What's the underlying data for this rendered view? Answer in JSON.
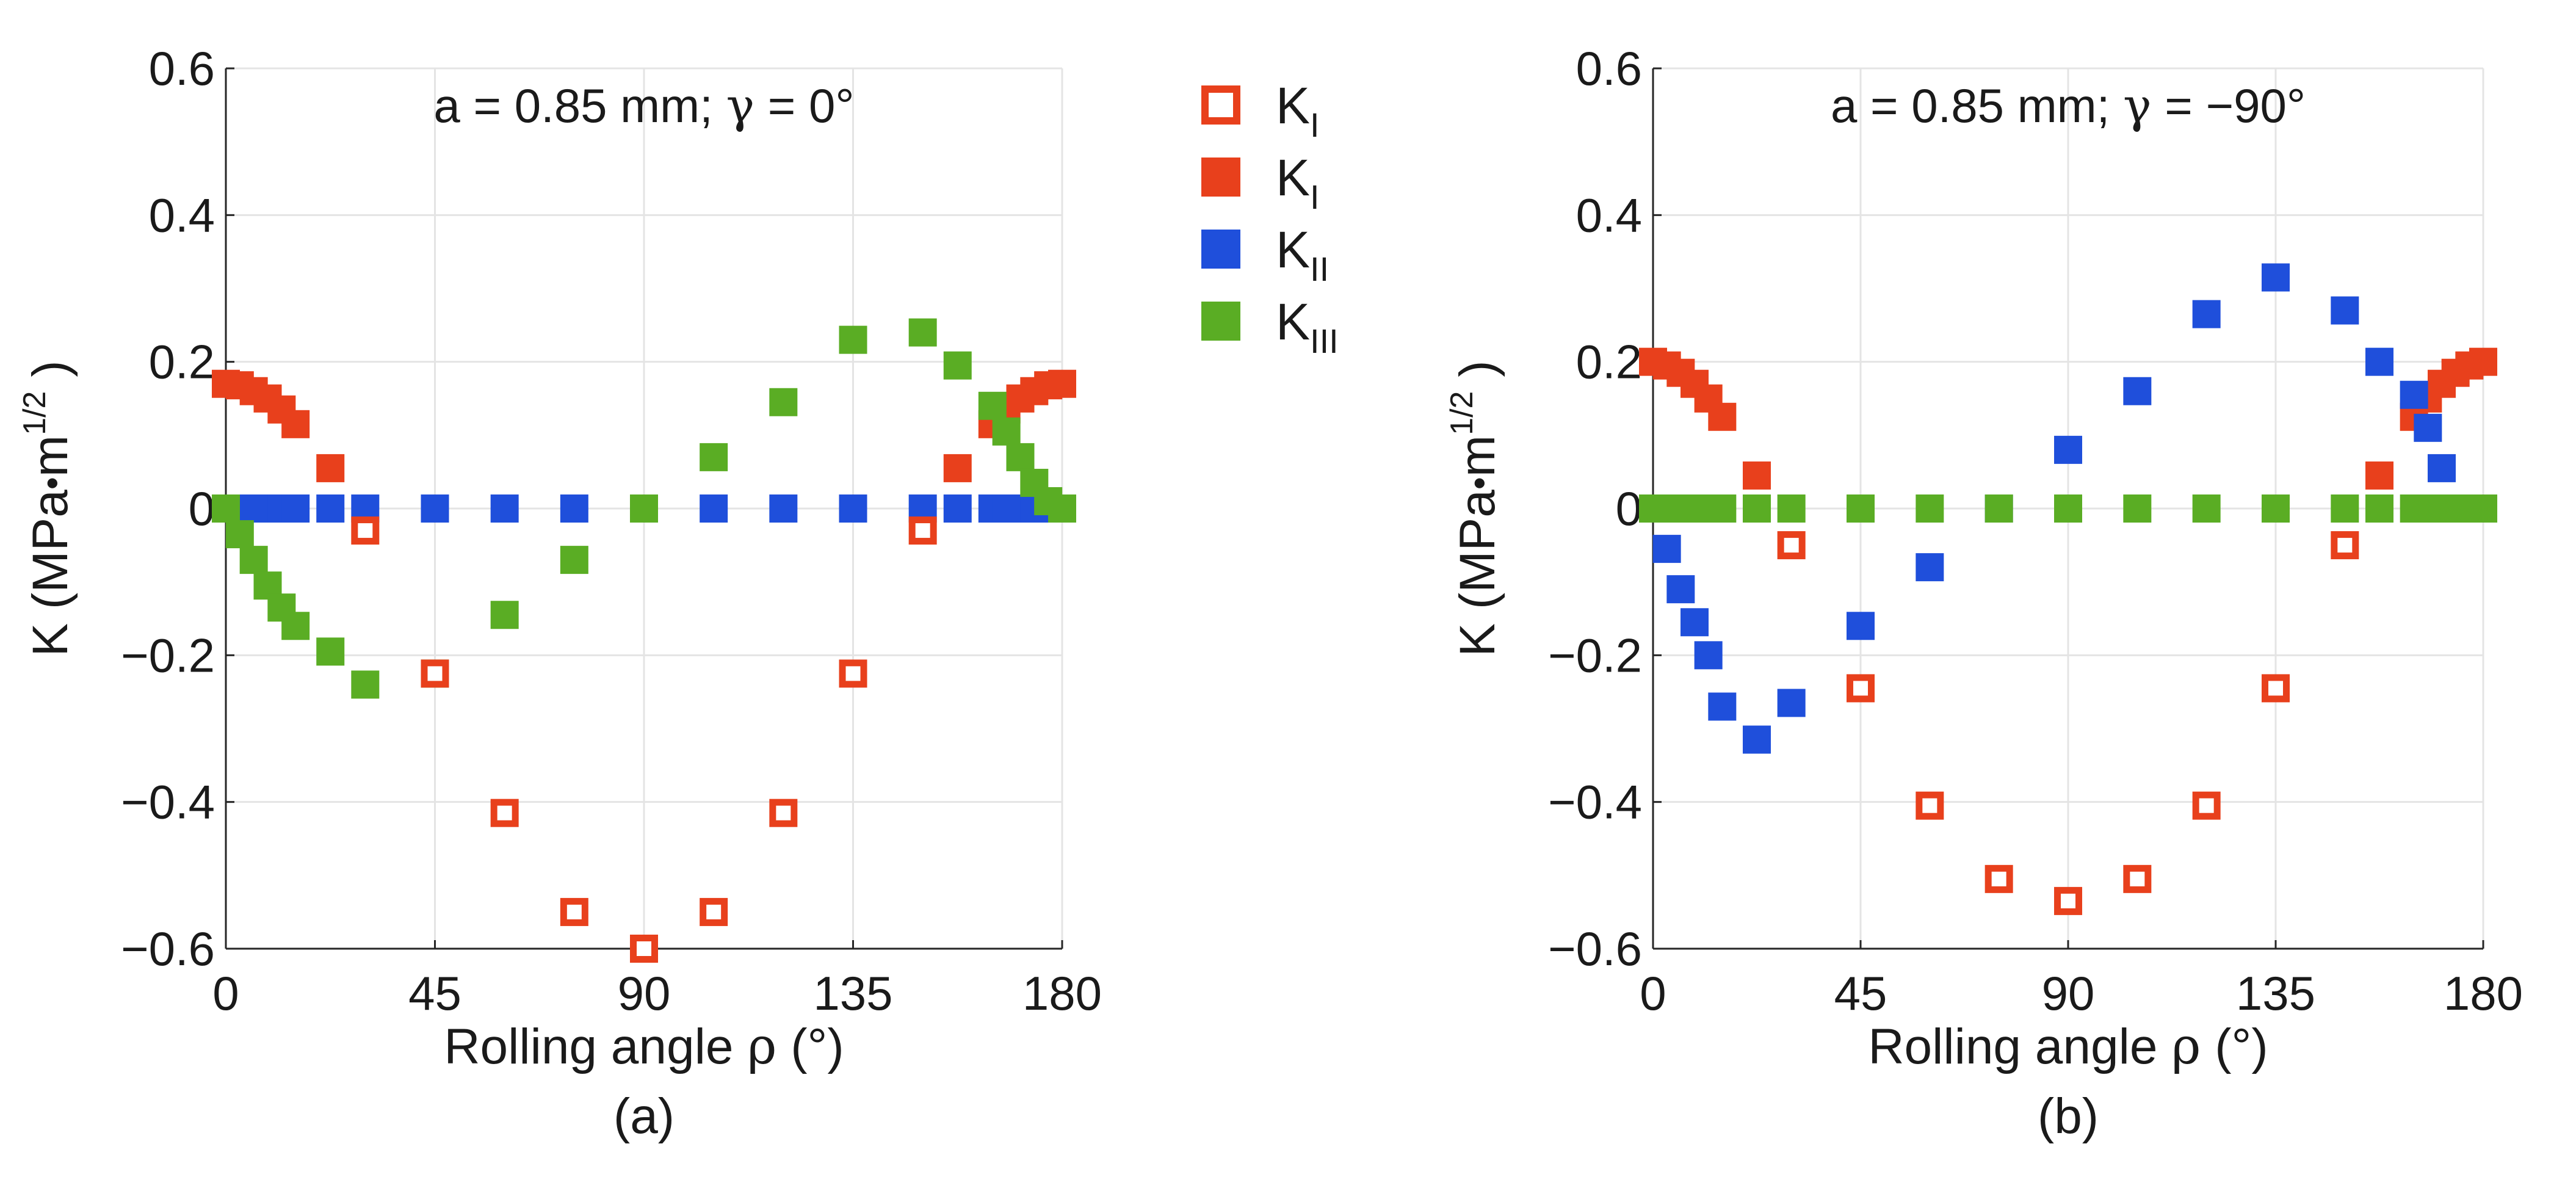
{
  "chart_data": [
    {
      "type": "scatter",
      "panel_label": "(a)",
      "annotation": {
        "prefix": "a = 0.85 mm; ",
        "gamma": "γ",
        "suffix": "  = 0°"
      },
      "xlabel": {
        "text": "Rolling angle ",
        "rho": "ρ",
        "unit": "  (°)"
      },
      "ylabel": {
        "main": "K (MPa",
        "dot": "•",
        "m": "m",
        "exp": "1/2",
        "close": " )"
      },
      "xlim": [
        0,
        180
      ],
      "ylim": [
        -0.6,
        0.6
      ],
      "xticks": [
        0,
        45,
        90,
        135,
        180
      ],
      "yticks": [
        -0.6,
        -0.4,
        -0.2,
        0,
        0.2,
        0.4,
        0.6
      ],
      "ytick_labels": [
        "−0.6",
        "−0.4",
        "−0.2",
        "0",
        "0.2",
        "0.4",
        "0.6"
      ],
      "grid": true,
      "series": [
        {
          "key": "KI_open",
          "color": "#e8401c",
          "filled": false,
          "x": [
            30,
            45,
            60,
            75,
            90,
            105,
            120,
            135,
            150
          ],
          "y": [
            -0.03,
            -0.225,
            -0.415,
            -0.55,
            -0.6,
            -0.55,
            -0.415,
            -0.225,
            -0.03
          ]
        },
        {
          "key": "KI_filled",
          "color": "#e8401c",
          "filled": true,
          "x": [
            0,
            3,
            6,
            9,
            12,
            15,
            22.5,
            157.5,
            165,
            168,
            171,
            174,
            177,
            180
          ],
          "y": [
            0.17,
            0.168,
            0.16,
            0.15,
            0.135,
            0.115,
            0.055,
            0.055,
            0.115,
            0.135,
            0.15,
            0.16,
            0.168,
            0.17
          ]
        },
        {
          "key": "KII",
          "color": "#1f4fdb",
          "filled": true,
          "x": [
            0,
            3,
            6,
            9,
            12,
            15,
            22.5,
            30,
            45,
            60,
            75,
            90,
            105,
            120,
            135,
            150,
            157.5,
            165,
            168,
            171,
            174,
            177,
            180
          ],
          "y": [
            0,
            0,
            0,
            0,
            0,
            0,
            0,
            0,
            0,
            0,
            0,
            0,
            0,
            0,
            0,
            0,
            0,
            0,
            0,
            0,
            0,
            0,
            0
          ]
        },
        {
          "key": "KIII",
          "color": "#5aad24",
          "filled": true,
          "x": [
            0,
            3,
            6,
            9,
            12,
            15,
            22.5,
            30,
            45,
            60,
            75,
            90,
            105,
            120,
            135,
            150,
            157.5,
            165,
            168,
            171,
            174,
            177,
            180
          ],
          "y": [
            0,
            -0.035,
            -0.07,
            -0.105,
            -0.135,
            -0.16,
            -0.195,
            -0.24,
            -0.225,
            -0.145,
            -0.07,
            0,
            0.07,
            0.145,
            0.23,
            0.24,
            0.195,
            0.14,
            0.105,
            0.07,
            0.035,
            0.01,
            0
          ]
        }
      ]
    },
    {
      "type": "scatter",
      "panel_label": "(b)",
      "annotation": {
        "prefix": "a = 0.85 mm; ",
        "gamma": "γ",
        "suffix": "  = −90°"
      },
      "xlabel": {
        "text": "Rolling angle ",
        "rho": "ρ",
        "unit": "  (°)"
      },
      "ylabel": {
        "main": "K (MPa",
        "dot": "•",
        "m": "m",
        "exp": "1/2",
        "close": " )"
      },
      "xlim": [
        0,
        180
      ],
      "ylim": [
        -0.6,
        0.6
      ],
      "xticks": [
        0,
        45,
        90,
        135,
        180
      ],
      "yticks": [
        -0.6,
        -0.4,
        -0.2,
        0,
        0.2,
        0.4,
        0.6
      ],
      "ytick_labels": [
        "−0.6",
        "−0.4",
        "−0.2",
        "0",
        "0.2",
        "0.4",
        "0.6"
      ],
      "grid": true,
      "series": [
        {
          "key": "KI_open",
          "color": "#e8401c",
          "filled": false,
          "x": [
            30,
            45,
            60,
            75,
            90,
            105,
            120,
            135,
            150
          ],
          "y": [
            -0.05,
            -0.245,
            -0.405,
            -0.505,
            -0.535,
            -0.505,
            -0.405,
            -0.245,
            -0.05
          ]
        },
        {
          "key": "KI_filled",
          "color": "#e8401c",
          "filled": true,
          "x": [
            0,
            3,
            6,
            9,
            12,
            15,
            22.5,
            157.5,
            165,
            168,
            171,
            174,
            177,
            180
          ],
          "y": [
            0.2,
            0.195,
            0.185,
            0.17,
            0.15,
            0.125,
            0.045,
            0.045,
            0.125,
            0.15,
            0.17,
            0.185,
            0.195,
            0.2
          ]
        },
        {
          "key": "KII",
          "color": "#1f4fdb",
          "filled": true,
          "x": [
            3,
            6,
            9,
            12,
            15,
            22.5,
            30,
            45,
            60,
            75,
            90,
            105,
            120,
            135,
            150,
            157.5,
            165,
            168,
            171,
            174
          ],
          "y": [
            -0.055,
            -0.11,
            -0.155,
            -0.2,
            -0.27,
            -0.315,
            -0.265,
            -0.16,
            -0.08,
            0,
            0.08,
            0.16,
            0.265,
            0.315,
            0.27,
            0.2,
            0.155,
            0.11,
            0.055,
            0
          ]
        },
        {
          "key": "KIII",
          "color": "#5aad24",
          "filled": true,
          "x": [
            0,
            3,
            6,
            9,
            12,
            15,
            22.5,
            30,
            45,
            60,
            75,
            90,
            105,
            120,
            135,
            150,
            157.5,
            165,
            168,
            171,
            174,
            177,
            180
          ],
          "y": [
            0,
            0,
            0,
            0,
            0,
            0,
            0,
            0,
            0,
            0,
            0,
            0,
            0,
            0,
            0,
            0,
            0,
            0,
            0,
            0,
            0,
            0,
            0
          ]
        }
      ]
    }
  ],
  "legend": {
    "placement": "between panels, top",
    "entries": [
      {
        "key": "KI_open",
        "label": "K",
        "sub": "I",
        "color": "#e8401c",
        "filled": false
      },
      {
        "key": "KI_filled",
        "label": "K",
        "sub": "I",
        "color": "#e8401c",
        "filled": true
      },
      {
        "key": "KII",
        "label": "K",
        "sub": "II",
        "color": "#1f4fdb",
        "filled": true
      },
      {
        "key": "KIII",
        "label": "K",
        "sub": "III",
        "color": "#5aad24",
        "filled": true
      }
    ]
  }
}
